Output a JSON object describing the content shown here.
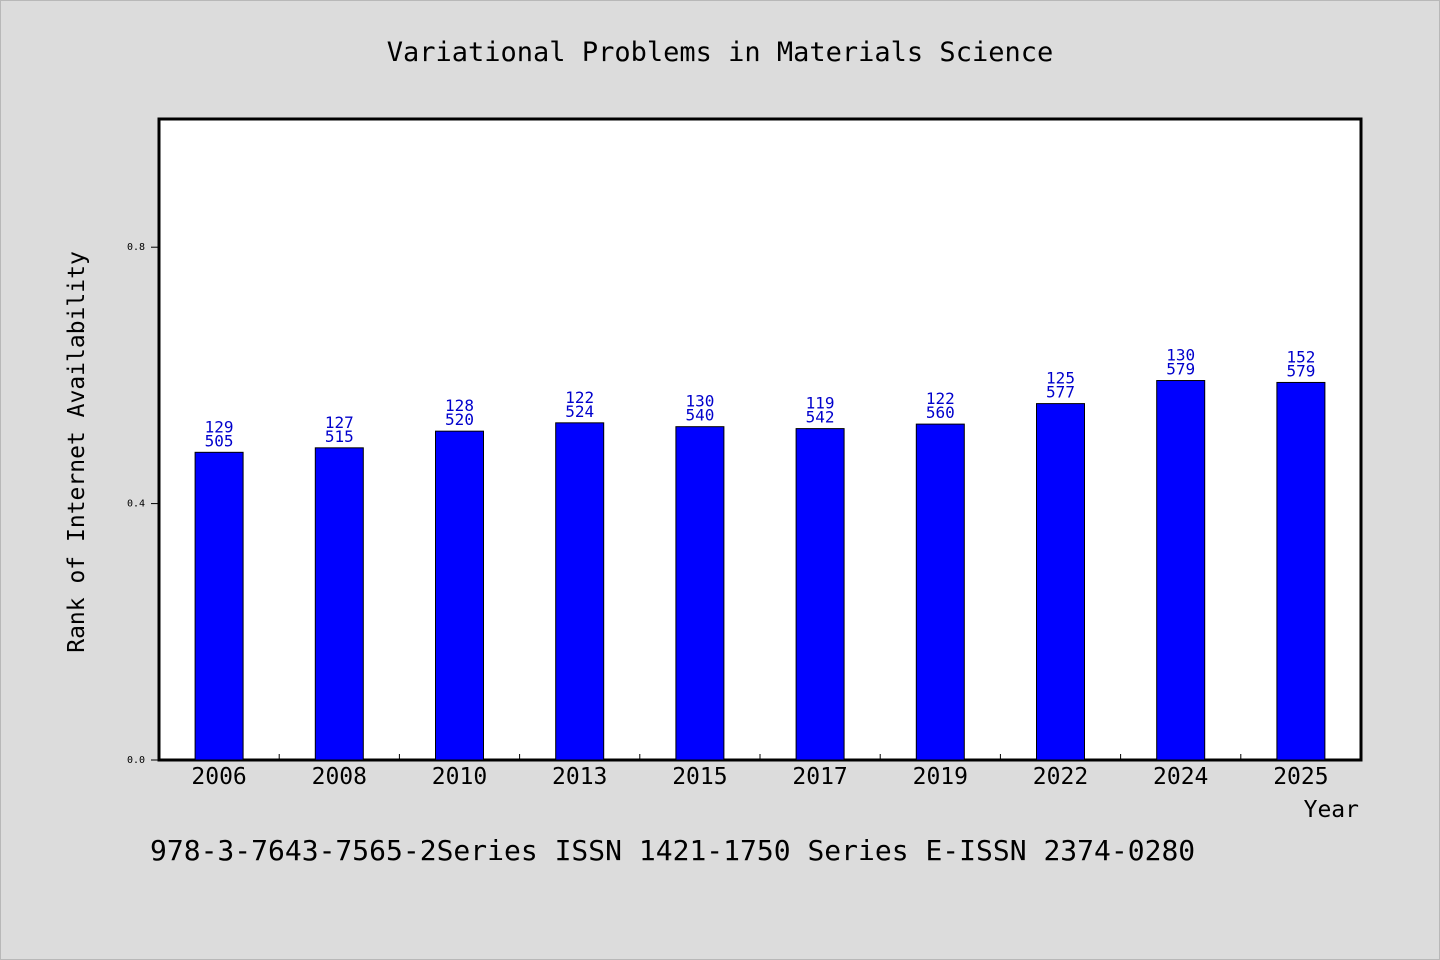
{
  "chart_data": {
    "type": "bar",
    "title": "Variational Problems in Materials Science",
    "xlabel": "Year",
    "ylabel": "Rank of Internet Availability",
    "categories": [
      "2006",
      "2008",
      "2010",
      "2013",
      "2015",
      "2017",
      "2019",
      "2022",
      "2024",
      "2025"
    ],
    "values": [
      0.48,
      0.487,
      0.513,
      0.526,
      0.52,
      0.517,
      0.524,
      0.556,
      0.592,
      0.589
    ],
    "labels_top": [
      "129",
      "127",
      "128",
      "122",
      "130",
      "119",
      "122",
      "125",
      "130",
      "152"
    ],
    "labels_bottom": [
      "505",
      "515",
      "520",
      "524",
      "540",
      "542",
      "560",
      "577",
      "579",
      "579"
    ],
    "ylim": [
      0,
      1.0
    ],
    "yticks": [
      "0.0",
      "0.4",
      "0.8"
    ],
    "grid": false,
    "colors": {
      "bar": "#0000ff",
      "label": "#0000cc",
      "plot_bg": "#ffffff",
      "page_bg": "#dcdcdc"
    }
  },
  "footer": "978-3-7643-7565-2Series ISSN 1421-1750 Series E-ISSN 2374-0280"
}
